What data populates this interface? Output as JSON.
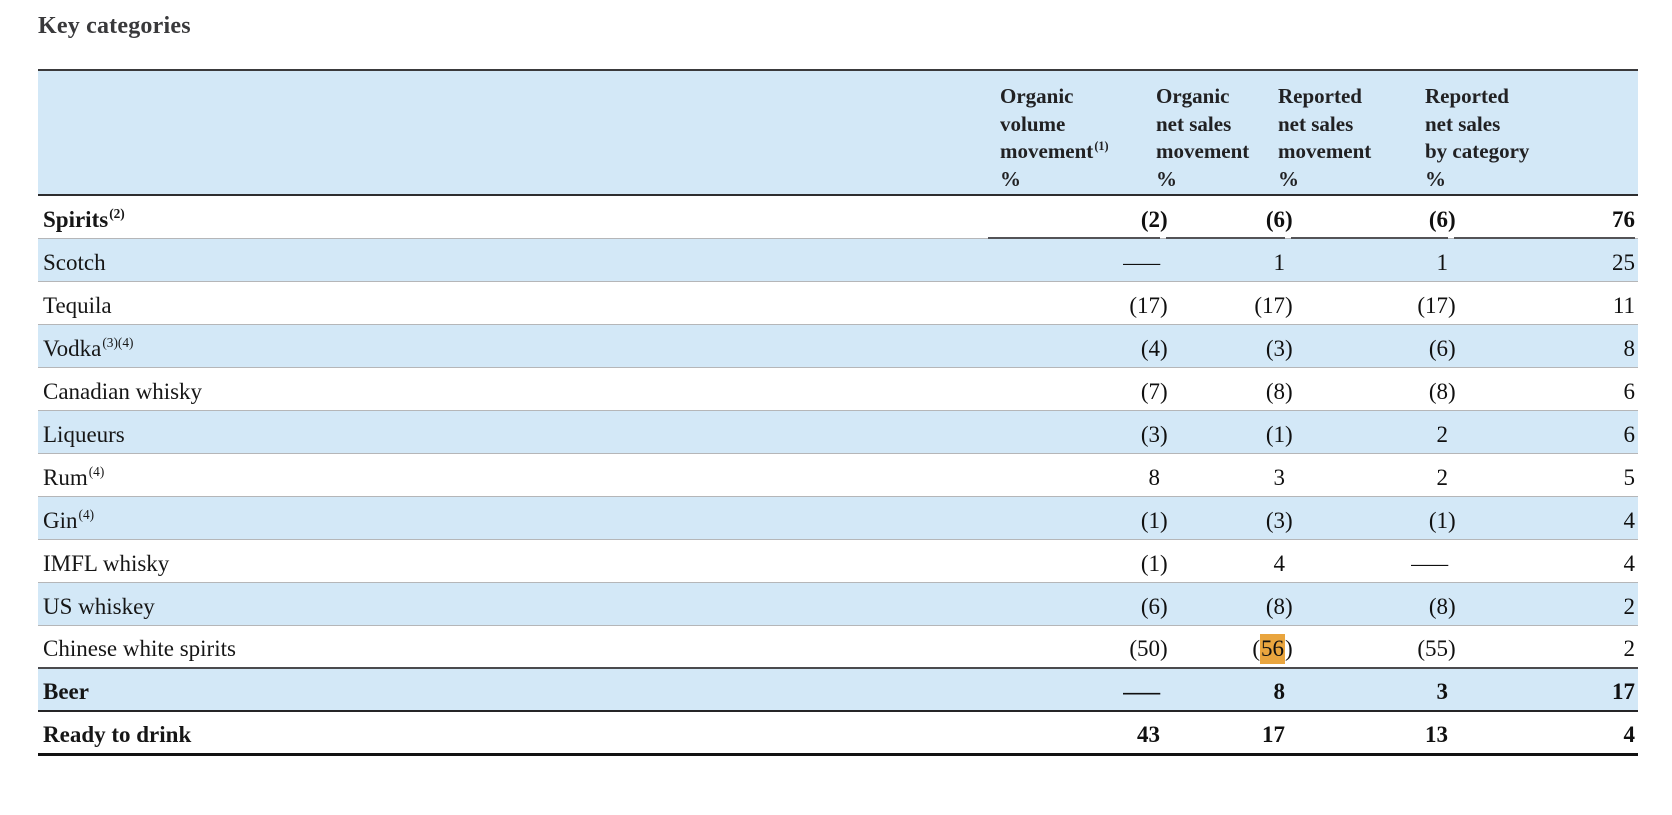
{
  "page": {
    "title": "Key categories"
  },
  "colors": {
    "row_shade": "#D3E8F7",
    "highlight": "#E9A53E"
  },
  "table": {
    "columns": [
      {
        "label": "Organic\nvolume\nmovement",
        "footnote": "(1)",
        "unit": "%"
      },
      {
        "label": "Organic\nnet sales\nmovement",
        "footnote": "",
        "unit": "%"
      },
      {
        "label": "Reported\nnet sales\nmovement",
        "footnote": "",
        "unit": "%"
      },
      {
        "label": "Reported\nnet sales\nby category",
        "footnote": "",
        "unit": "%"
      }
    ],
    "rows": [
      {
        "label": "Spirits",
        "footnote": "(2)",
        "bold": true,
        "shaded": false,
        "underline_values": true,
        "values": [
          "(2)",
          "(6)",
          "(6)",
          "76"
        ]
      },
      {
        "label": "Scotch",
        "footnote": "",
        "bold": false,
        "shaded": true,
        "values": [
          "—",
          "1",
          "1",
          "25"
        ]
      },
      {
        "label": "Tequila",
        "footnote": "",
        "bold": false,
        "shaded": false,
        "values": [
          "(17)",
          "(17)",
          "(17)",
          "11"
        ]
      },
      {
        "label": "Vodka",
        "footnote": "(3)(4)",
        "bold": false,
        "shaded": true,
        "values": [
          "(4)",
          "(3)",
          "(6)",
          "8"
        ]
      },
      {
        "label": "Canadian whisky",
        "footnote": "",
        "bold": false,
        "shaded": false,
        "values": [
          "(7)",
          "(8)",
          "(8)",
          "6"
        ]
      },
      {
        "label": "Liqueurs",
        "footnote": "",
        "bold": false,
        "shaded": true,
        "values": [
          "(3)",
          "(1)",
          "2",
          "6"
        ]
      },
      {
        "label": "Rum",
        "footnote": "(4)",
        "bold": false,
        "shaded": false,
        "values": [
          "8",
          "3",
          "2",
          "5"
        ]
      },
      {
        "label": "Gin",
        "footnote": "(4)",
        "bold": false,
        "shaded": true,
        "values": [
          "(1)",
          "(3)",
          "(1)",
          "4"
        ]
      },
      {
        "label": "IMFL whisky",
        "footnote": "",
        "bold": false,
        "shaded": false,
        "values": [
          "(1)",
          "4",
          "—",
          "4"
        ]
      },
      {
        "label": "US whiskey",
        "footnote": "",
        "bold": false,
        "shaded": true,
        "values": [
          "(6)",
          "(8)",
          "(8)",
          "2"
        ]
      },
      {
        "label": "Chinese white spirits",
        "footnote": "",
        "bold": false,
        "shaded": false,
        "border_bottom": "dark",
        "values": [
          "(50)",
          "(56)",
          "(55)",
          "2"
        ],
        "highlight": {
          "col": 1,
          "prefix": "(",
          "text": "56",
          "suffix": ")"
        }
      },
      {
        "label": "Beer",
        "footnote": "",
        "bold": true,
        "shaded": true,
        "border_bottom": "darker",
        "values": [
          "—",
          "8",
          "3",
          "17"
        ]
      },
      {
        "label": "Ready to drink",
        "footnote": "",
        "bold": true,
        "shaded": false,
        "border_bottom": "thick",
        "values": [
          "43",
          "17",
          "13",
          "4"
        ]
      }
    ]
  }
}
